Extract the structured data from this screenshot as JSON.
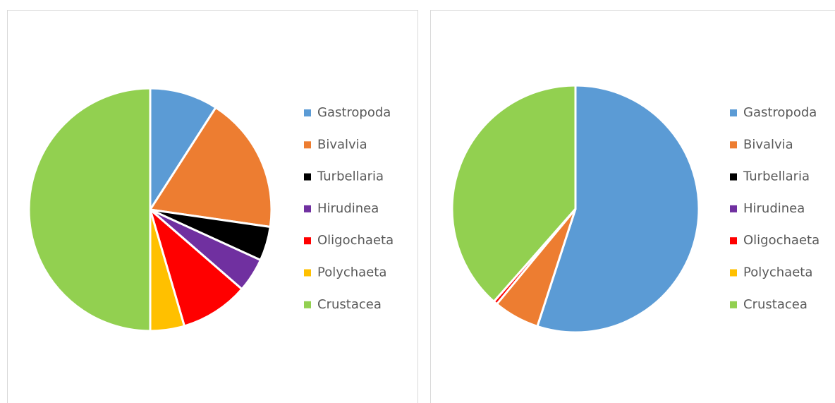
{
  "chart_data": [
    {
      "type": "pie",
      "categories": [
        "Gastropoda",
        "Bivalvia",
        "Turbellaria",
        "Hirudinea",
        "Oligochaeta",
        "Polychaeta",
        "Crustacea"
      ],
      "values": [
        2,
        4,
        1,
        1,
        2,
        1,
        11
      ],
      "colors": [
        "#5b9bd5",
        "#ed7d31",
        "#000000",
        "#7030a0",
        "#ff0000",
        "#ffc000",
        "#92d050"
      ],
      "legend": "right"
    },
    {
      "type": "pie",
      "categories": [
        "Gastropoda",
        "Bivalvia",
        "Turbellaria",
        "Hirudinea",
        "Oligochaeta",
        "Polychaeta",
        "Crustacea"
      ],
      "values": [
        55,
        6,
        0,
        0,
        0.5,
        0,
        38.5
      ],
      "colors": [
        "#5b9bd5",
        "#ed7d31",
        "#000000",
        "#7030a0",
        "#ff0000",
        "#ffc000",
        "#92d050"
      ],
      "legend": "right"
    }
  ]
}
